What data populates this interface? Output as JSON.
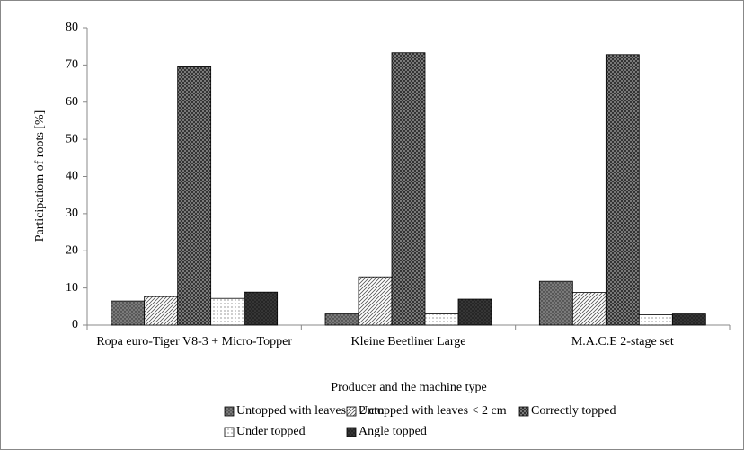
{
  "chart_data": {
    "type": "bar",
    "y_label": "Participatiom of roots [%]",
    "x_label": "Producer and the machine type",
    "categories": [
      "Ropa euro-Tiger V8-3 + Micro-Topper",
      "Kleine Beetliner Large",
      "M.A.C.E 2-stage set"
    ],
    "series": [
      {
        "name": "Untopped with leaves > 2 cm",
        "color": "#7a7a7a",
        "pattern": "dots",
        "values": [
          6.5,
          3.0,
          11.8
        ]
      },
      {
        "name": "Untopped with leaves < 2 cm",
        "color": "#ffffff",
        "pattern": "diagonal",
        "values": [
          7.7,
          13.0,
          8.8
        ]
      },
      {
        "name": "Correctly topped",
        "color": "#8c8c8c",
        "pattern": "crosshatch",
        "values": [
          69.5,
          73.3,
          72.8
        ]
      },
      {
        "name": "Under topped",
        "color": "#ffffff",
        "pattern": "sparse-dots",
        "values": [
          7.2,
          3.0,
          2.8
        ]
      },
      {
        "name": "Angle topped",
        "color": "#3a3a3a",
        "pattern": "crosshatch",
        "values": [
          8.9,
          7.0,
          3.0
        ]
      }
    ],
    "ylim": [
      0,
      80
    ],
    "yticks": [
      0,
      10,
      20,
      30,
      40,
      50,
      60,
      70,
      80
    ],
    "grid": false
  }
}
